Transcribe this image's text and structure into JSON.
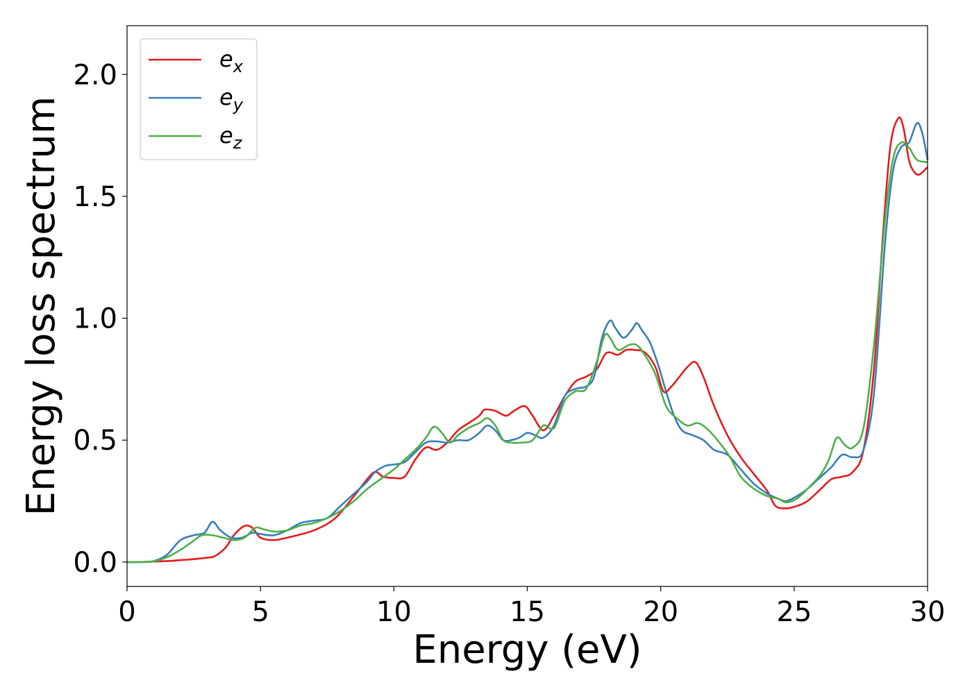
{
  "chart_data": {
    "type": "line",
    "title": "",
    "xlabel": "Energy (eV)",
    "ylabel": "Energy loss spectrum",
    "xlim": [
      0,
      30
    ],
    "ylim": [
      -0.1,
      2.2
    ],
    "xticks": [
      0,
      5,
      10,
      15,
      20,
      25,
      30
    ],
    "xtick_labels": [
      "0",
      "5",
      "10",
      "15",
      "20",
      "25",
      "30"
    ],
    "yticks": [
      0.0,
      0.5,
      1.0,
      1.5,
      2.0
    ],
    "ytick_labels": [
      "0.0",
      "0.5",
      "1.0",
      "1.5",
      "2.0"
    ],
    "grid": false,
    "legend_position": "top-left",
    "series": [
      {
        "name": "e",
        "subscript": "x",
        "color": "#e41a1c",
        "x": [
          0,
          0.5,
          1,
          1.5,
          2,
          2.5,
          3,
          3.3,
          3.7,
          4,
          4.4,
          4.7,
          5,
          5.5,
          6,
          7,
          7.8,
          8.5,
          9,
          9.3,
          9.6,
          10,
          10.4,
          10.8,
          11.2,
          11.6,
          12,
          12.4,
          12.8,
          13.2,
          13.4,
          13.8,
          14.2,
          14.5,
          14.9,
          15.2,
          15.6,
          16,
          16.4,
          16.8,
          17.2,
          17.6,
          17.9,
          18.1,
          18.4,
          18.7,
          19,
          19.4,
          19.8,
          20.1,
          20.4,
          20.7,
          21,
          21.3,
          21.6,
          22,
          22.5,
          23,
          23.5,
          24,
          24.3,
          24.7,
          25.1,
          25.5,
          26,
          26.4,
          26.8,
          27.2,
          27.6,
          28,
          28.3,
          28.6,
          28.9,
          29.1,
          29.3,
          29.5,
          29.7,
          30
        ],
        "y": [
          0.0,
          0.0,
          0.002,
          0.004,
          0.008,
          0.012,
          0.018,
          0.025,
          0.06,
          0.11,
          0.148,
          0.14,
          0.1,
          0.09,
          0.1,
          0.13,
          0.18,
          0.27,
          0.34,
          0.37,
          0.35,
          0.345,
          0.35,
          0.42,
          0.47,
          0.46,
          0.49,
          0.54,
          0.57,
          0.6,
          0.625,
          0.62,
          0.6,
          0.62,
          0.64,
          0.6,
          0.54,
          0.6,
          0.68,
          0.74,
          0.76,
          0.79,
          0.85,
          0.86,
          0.85,
          0.87,
          0.87,
          0.86,
          0.8,
          0.7,
          0.72,
          0.76,
          0.8,
          0.82,
          0.76,
          0.64,
          0.52,
          0.43,
          0.36,
          0.29,
          0.23,
          0.22,
          0.23,
          0.25,
          0.3,
          0.34,
          0.35,
          0.37,
          0.46,
          0.8,
          1.3,
          1.7,
          1.82,
          1.78,
          1.65,
          1.6,
          1.59,
          1.62
        ]
      },
      {
        "name": "e",
        "subscript": "y",
        "color": "#377eb8",
        "x": [
          0,
          0.5,
          1,
          1.5,
          2,
          2.5,
          2.9,
          3.2,
          3.5,
          3.9,
          4.3,
          4.7,
          5,
          5.5,
          6,
          6.5,
          7,
          7.5,
          8,
          8.5,
          9,
          9.3,
          9.7,
          10,
          10.4,
          10.8,
          11.2,
          11.6,
          12,
          12.4,
          12.8,
          13.2,
          13.5,
          13.8,
          14.1,
          14.4,
          14.7,
          15,
          15.3,
          15.6,
          16,
          16.4,
          16.8,
          17.2,
          17.5,
          17.8,
          18.1,
          18.3,
          18.6,
          18.9,
          19.1,
          19.3,
          19.6,
          19.9,
          20.2,
          20.5,
          20.8,
          21.2,
          21.6,
          22,
          22.5,
          23,
          23.5,
          24,
          24.4,
          24.7,
          25.1,
          25.5,
          26,
          26.4,
          26.8,
          27.2,
          27.6,
          28,
          28.4,
          28.7,
          29,
          29.3,
          29.6,
          29.8,
          30
        ],
        "y": [
          0.0,
          0.0,
          0.004,
          0.03,
          0.09,
          0.11,
          0.12,
          0.165,
          0.13,
          0.1,
          0.1,
          0.12,
          0.115,
          0.11,
          0.13,
          0.16,
          0.17,
          0.18,
          0.23,
          0.28,
          0.33,
          0.37,
          0.395,
          0.4,
          0.41,
          0.45,
          0.49,
          0.495,
          0.49,
          0.5,
          0.5,
          0.53,
          0.56,
          0.54,
          0.5,
          0.5,
          0.51,
          0.53,
          0.52,
          0.51,
          0.56,
          0.68,
          0.71,
          0.72,
          0.76,
          0.92,
          0.99,
          0.96,
          0.92,
          0.95,
          0.98,
          0.95,
          0.9,
          0.81,
          0.7,
          0.6,
          0.54,
          0.52,
          0.5,
          0.46,
          0.44,
          0.38,
          0.32,
          0.28,
          0.26,
          0.25,
          0.27,
          0.3,
          0.35,
          0.39,
          0.44,
          0.43,
          0.46,
          0.7,
          1.3,
          1.6,
          1.7,
          1.72,
          1.8,
          1.76,
          1.65
        ]
      },
      {
        "name": "e",
        "subscript": "z",
        "color": "#4daf4a",
        "x": [
          0,
          0.5,
          1,
          1.5,
          2,
          2.4,
          2.8,
          3.2,
          3.6,
          4,
          4.4,
          4.8,
          5.1,
          5.5,
          6,
          6.5,
          7,
          7.5,
          8,
          8.5,
          9,
          9.5,
          10,
          10.4,
          10.8,
          11.2,
          11.5,
          11.8,
          12.1,
          12.4,
          12.8,
          13.2,
          13.5,
          13.8,
          14.1,
          14.4,
          14.8,
          15.2,
          15.6,
          16,
          16.4,
          16.8,
          17.2,
          17.6,
          17.9,
          18.1,
          18.4,
          18.8,
          19.1,
          19.4,
          19.8,
          20.2,
          20.6,
          21,
          21.4,
          21.8,
          22.2,
          22.6,
          23,
          23.5,
          24,
          24.4,
          24.7,
          25.1,
          25.5,
          26,
          26.3,
          26.6,
          26.9,
          27.2,
          27.6,
          28,
          28.4,
          28.7,
          29,
          29.3,
          29.6,
          30
        ],
        "y": [
          0.0,
          0.0,
          0.003,
          0.02,
          0.05,
          0.08,
          0.11,
          0.11,
          0.1,
          0.09,
          0.1,
          0.14,
          0.135,
          0.125,
          0.13,
          0.15,
          0.16,
          0.18,
          0.21,
          0.25,
          0.3,
          0.34,
          0.38,
          0.42,
          0.46,
          0.51,
          0.555,
          0.53,
          0.49,
          0.52,
          0.55,
          0.57,
          0.59,
          0.56,
          0.5,
          0.49,
          0.49,
          0.5,
          0.56,
          0.55,
          0.66,
          0.7,
          0.71,
          0.82,
          0.93,
          0.92,
          0.87,
          0.89,
          0.89,
          0.85,
          0.77,
          0.64,
          0.59,
          0.56,
          0.57,
          0.54,
          0.49,
          0.43,
          0.35,
          0.3,
          0.27,
          0.26,
          0.245,
          0.26,
          0.3,
          0.36,
          0.42,
          0.51,
          0.48,
          0.47,
          0.55,
          0.9,
          1.4,
          1.65,
          1.72,
          1.7,
          1.65,
          1.64
        ]
      }
    ]
  }
}
